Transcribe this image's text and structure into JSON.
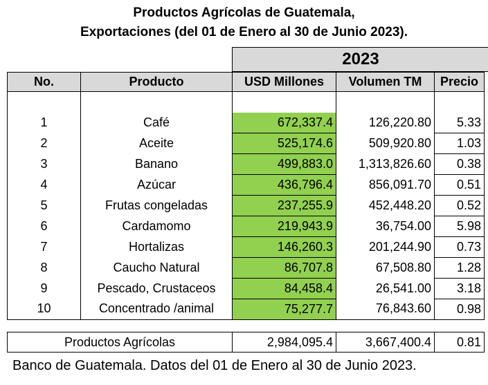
{
  "title_line1": "Productos Agrícolas de Guatemala,",
  "title_line2": "Exportaciones (del 01 de Enero al 30 de Junio 2023).",
  "year": "2023",
  "headers": {
    "no": "No.",
    "producto": "Producto",
    "usd": "USD Millones",
    "volumen": "Volumen TM",
    "precio": "Precio"
  },
  "rows": [
    {
      "no": "1",
      "producto": "Café",
      "usd": "672,337.4",
      "volumen": "126,220.80",
      "precio": "5.33"
    },
    {
      "no": "2",
      "producto": "Aceite",
      "usd": "525,174.6",
      "volumen": "509,920.80",
      "precio": "1.03"
    },
    {
      "no": "3",
      "producto": "Banano",
      "usd": "499,883.0",
      "volumen": "1,313,826.60",
      "precio": "0.38"
    },
    {
      "no": "4",
      "producto": "Azúcar",
      "usd": "436,796.4",
      "volumen": "856,091.70",
      "precio": "0.51"
    },
    {
      "no": "5",
      "producto": "Frutas congeladas",
      "usd": "237,255.9",
      "volumen": "452,448.20",
      "precio": "0.52"
    },
    {
      "no": "6",
      "producto": "Cardamomo",
      "usd": "219,943.9",
      "volumen": "36,754.00",
      "precio": "5.98"
    },
    {
      "no": "7",
      "producto": "Hortalizas",
      "usd": "146,260.3",
      "volumen": "201,244.90",
      "precio": "0.73"
    },
    {
      "no": "8",
      "producto": "Caucho Natural",
      "usd": "86,707.8",
      "volumen": "67,508.80",
      "precio": "1.28"
    },
    {
      "no": "9",
      "producto": "Pescado, Crustaceos",
      "usd": "84,458.4",
      "volumen": "26,541.00",
      "precio": "3.18"
    },
    {
      "no": "10",
      "producto": "Concentrado /animal",
      "usd": "75,277.7",
      "volumen": "76,843.60",
      "precio": "0.98"
    }
  ],
  "total": {
    "label": "Productos Agrícolas",
    "usd": "2,984,095.4",
    "volumen": "3,667,400.4",
    "precio": "0.81"
  },
  "footer": "Banco de Guatemala. Datos del 01 de Enero al 30 de Junio 2023.",
  "colors": {
    "header_gray": "#d9d9d9",
    "usd_highlight": "#92d050"
  }
}
